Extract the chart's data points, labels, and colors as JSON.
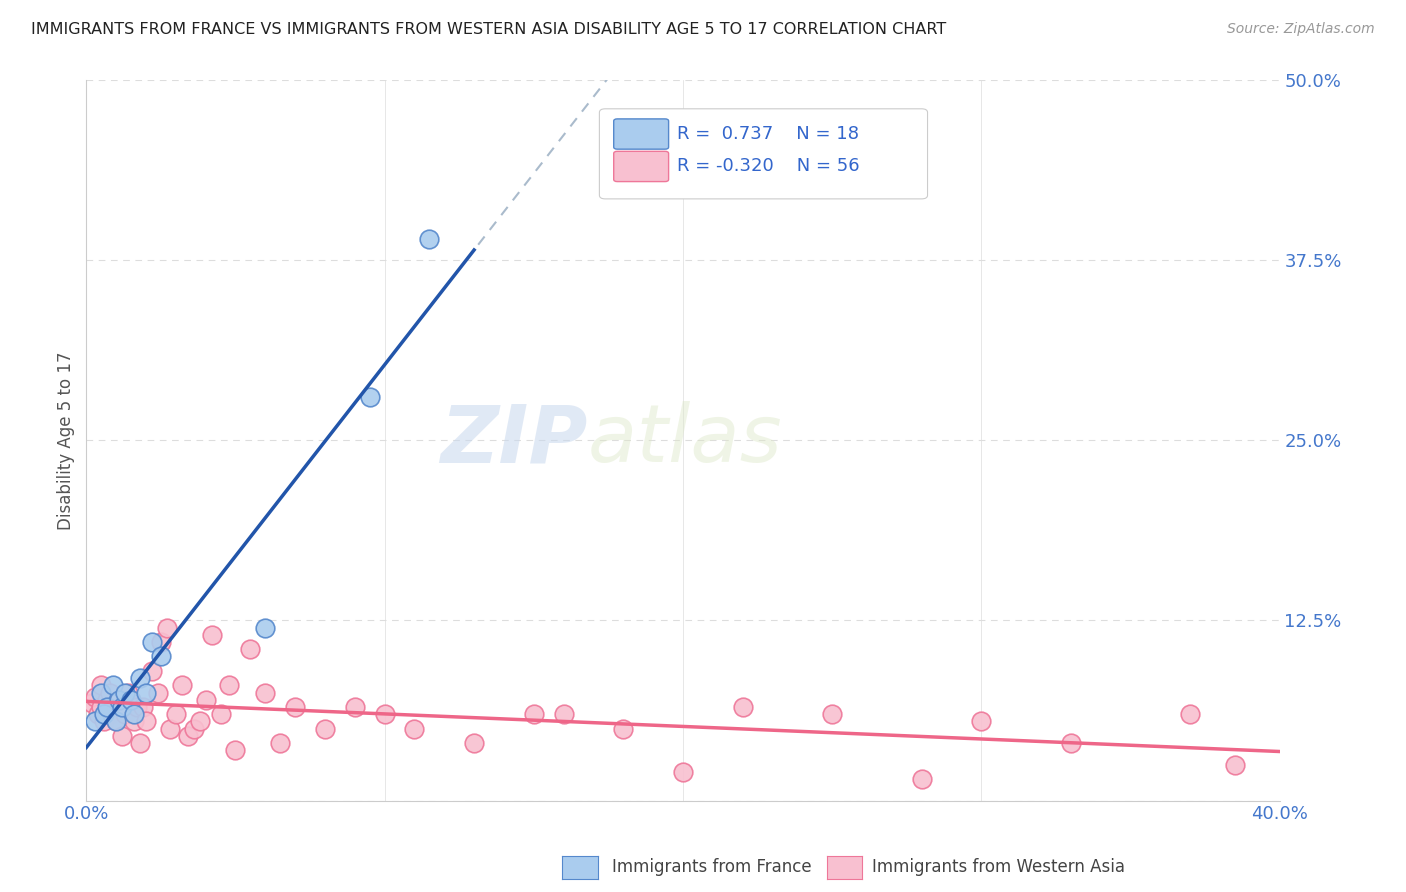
{
  "title": "IMMIGRANTS FROM FRANCE VS IMMIGRANTS FROM WESTERN ASIA DISABILITY AGE 5 TO 17 CORRELATION CHART",
  "source": "Source: ZipAtlas.com",
  "ylabel": "Disability Age 5 to 17",
  "xlim": [
    0.0,
    0.4
  ],
  "ylim": [
    0.0,
    0.5
  ],
  "xticks": [
    0.0,
    0.1,
    0.2,
    0.3,
    0.4
  ],
  "xticklabels": [
    "0.0%",
    "",
    "",
    "",
    "40.0%"
  ],
  "yticks": [
    0.0,
    0.125,
    0.25,
    0.375,
    0.5
  ],
  "yticklabels": [
    "",
    "12.5%",
    "25.0%",
    "37.5%",
    "50.0%"
  ],
  "france_color": "#aaccee",
  "france_edge": "#5588cc",
  "western_asia_color": "#f8c0d0",
  "western_asia_edge": "#ee7799",
  "trend_france_color": "#2255aa",
  "trend_western_asia_color": "#ee6688",
  "trend_dashed_color": "#aabbcc",
  "watermark_zip": "ZIP",
  "watermark_atlas": "atlas",
  "france_x": [
    0.003,
    0.005,
    0.006,
    0.007,
    0.009,
    0.01,
    0.011,
    0.012,
    0.013,
    0.015,
    0.016,
    0.018,
    0.02,
    0.022,
    0.025,
    0.06,
    0.095,
    0.115
  ],
  "france_y": [
    0.055,
    0.075,
    0.06,
    0.065,
    0.08,
    0.055,
    0.07,
    0.065,
    0.075,
    0.07,
    0.06,
    0.085,
    0.075,
    0.11,
    0.1,
    0.12,
    0.28,
    0.39
  ],
  "western_asia_x": [
    0.002,
    0.003,
    0.004,
    0.005,
    0.005,
    0.006,
    0.007,
    0.008,
    0.008,
    0.009,
    0.01,
    0.011,
    0.012,
    0.013,
    0.014,
    0.015,
    0.016,
    0.017,
    0.018,
    0.019,
    0.02,
    0.022,
    0.024,
    0.025,
    0.027,
    0.028,
    0.03,
    0.032,
    0.034,
    0.036,
    0.038,
    0.04,
    0.042,
    0.045,
    0.048,
    0.05,
    0.055,
    0.06,
    0.065,
    0.07,
    0.08,
    0.09,
    0.1,
    0.11,
    0.13,
    0.15,
    0.16,
    0.18,
    0.2,
    0.22,
    0.25,
    0.28,
    0.3,
    0.33,
    0.37,
    0.385
  ],
  "western_asia_y": [
    0.068,
    0.072,
    0.06,
    0.065,
    0.08,
    0.055,
    0.07,
    0.06,
    0.075,
    0.065,
    0.055,
    0.07,
    0.045,
    0.06,
    0.075,
    0.07,
    0.055,
    0.065,
    0.04,
    0.065,
    0.055,
    0.09,
    0.075,
    0.11,
    0.12,
    0.05,
    0.06,
    0.08,
    0.045,
    0.05,
    0.055,
    0.07,
    0.115,
    0.06,
    0.08,
    0.035,
    0.105,
    0.075,
    0.04,
    0.065,
    0.05,
    0.065,
    0.06,
    0.05,
    0.04,
    0.06,
    0.06,
    0.05,
    0.02,
    0.065,
    0.06,
    0.015,
    0.055,
    0.04,
    0.06,
    0.025
  ]
}
